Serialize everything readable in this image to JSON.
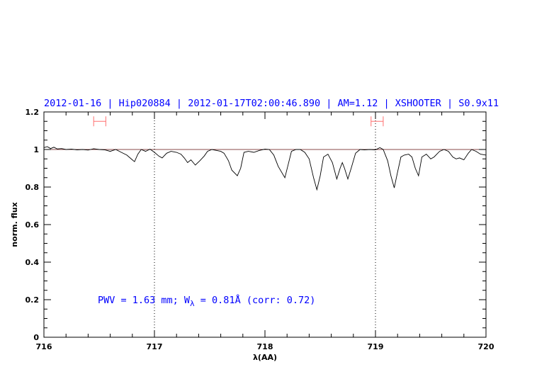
{
  "chart_data": {
    "type": "line",
    "title": "2012-01-16 | Hip020884 | 2012-01-17T02:00:46.890 | AM=1.12 | XSHOOTER | S0.9x11",
    "xlabel": "λ(AA)",
    "ylabel": "norm. flux",
    "xlim": [
      716,
      720
    ],
    "ylim": [
      0,
      1.2
    ],
    "x_ticks": [
      716,
      717,
      718,
      719,
      720
    ],
    "x_tick_labels": [
      "716",
      "717",
      "718",
      "719",
      "720"
    ],
    "y_ticks": [
      0,
      0.2,
      0.4,
      0.6,
      0.8,
      1,
      1.2
    ],
    "y_tick_labels": [
      "0",
      "0.2",
      "0.4",
      "0.6",
      "0.8",
      "1",
      "1.2"
    ],
    "x_minor_step": 0.2,
    "y_minor_step": 0.05,
    "grid": false,
    "annotation": {
      "prefix": "PWV = 1.63 mm; W",
      "sub": "λ",
      "suffix": " = 0.81Å (corr: 0.72)"
    },
    "reference_line": {
      "y": 1.0,
      "color": "#8a4a4a"
    },
    "vertical_dotted_lines": [
      717,
      719
    ],
    "ranges": [
      {
        "x": [
          716.45,
          716.56
        ],
        "y": 1.15,
        "color": "#ff7070"
      },
      {
        "x": [
          718.96,
          719.07
        ],
        "y": 1.15,
        "color": "#ff7070"
      }
    ],
    "colors": {
      "title": "#0000ff",
      "spectrum": "#000000",
      "annotation": "#0000ff"
    },
    "series": [
      {
        "x": [
          716.0,
          716.03,
          716.06,
          716.09,
          716.12,
          716.16,
          716.2,
          716.25,
          716.3,
          716.35,
          716.4,
          716.45,
          716.5,
          716.55,
          716.6,
          716.65,
          716.7,
          716.75,
          716.8,
          716.82,
          716.85,
          716.88,
          716.92,
          716.96,
          717.0,
          717.04,
          717.07,
          717.11,
          717.15,
          717.2,
          717.24,
          717.27,
          717.3,
          717.33,
          717.37,
          717.41,
          717.45,
          717.48,
          717.52,
          717.56,
          717.6,
          717.63,
          717.67,
          717.7,
          717.75,
          717.78,
          717.81,
          717.85,
          717.9,
          717.95,
          718.0,
          718.04,
          718.08,
          718.12,
          718.18,
          718.21,
          718.24,
          718.28,
          718.32,
          718.36,
          718.4,
          718.44,
          718.47,
          718.5,
          718.53,
          718.57,
          718.61,
          718.65,
          718.68,
          718.7,
          718.72,
          718.75,
          718.78,
          718.82,
          718.86,
          718.9,
          718.95,
          719.0,
          719.04,
          719.07,
          719.11,
          719.14,
          719.17,
          719.2,
          719.23,
          719.26,
          719.3,
          719.33,
          719.36,
          719.39,
          719.42,
          719.46,
          719.5,
          719.53,
          719.58,
          719.62,
          719.66,
          719.7,
          719.73,
          719.76,
          719.8,
          719.84,
          719.87,
          719.91,
          719.95,
          720.0
        ],
        "y": [
          1.01,
          1.015,
          1.005,
          1.012,
          1.003,
          1.005,
          1.0,
          1.002,
          0.998,
          1.0,
          0.997,
          1.004,
          1.0,
          0.998,
          0.99,
          1.0,
          0.985,
          0.97,
          0.945,
          0.935,
          0.975,
          1.0,
          0.99,
          1.002,
          0.985,
          0.965,
          0.955,
          0.98,
          0.99,
          0.985,
          0.975,
          0.955,
          0.93,
          0.945,
          0.917,
          0.94,
          0.965,
          0.99,
          1.0,
          0.995,
          0.99,
          0.98,
          0.94,
          0.89,
          0.86,
          0.9,
          0.985,
          0.99,
          0.985,
          0.995,
          1.002,
          1.0,
          0.97,
          0.91,
          0.85,
          0.92,
          0.99,
          1.0,
          1.0,
          0.985,
          0.95,
          0.85,
          0.786,
          0.86,
          0.96,
          0.975,
          0.93,
          0.843,
          0.9,
          0.93,
          0.9,
          0.843,
          0.9,
          0.98,
          1.0,
          0.998,
          1.0,
          0.998,
          1.01,
          1.0,
          0.94,
          0.86,
          0.796,
          0.88,
          0.96,
          0.97,
          0.975,
          0.96,
          0.9,
          0.86,
          0.96,
          0.975,
          0.95,
          0.96,
          0.99,
          1.0,
          0.99,
          0.96,
          0.95,
          0.955,
          0.945,
          0.98,
          1.0,
          0.99,
          0.975,
          0.97
        ]
      }
    ]
  }
}
